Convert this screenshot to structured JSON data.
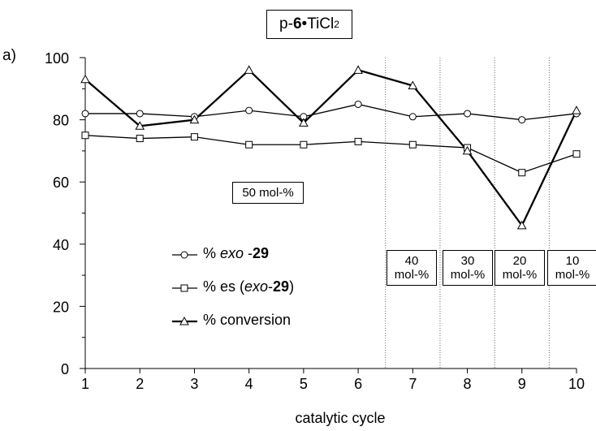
{
  "title": {
    "prefix": "p-",
    "bold": "6",
    "dot": "•",
    "rest": "TiCl",
    "sub": "2"
  },
  "panel_label": "a)",
  "chart_data": {
    "type": "line",
    "xlabel": "catalytic cycle",
    "ylabel": "",
    "x": [
      1,
      2,
      3,
      4,
      5,
      6,
      7,
      8,
      9,
      10
    ],
    "xlim": [
      1,
      10
    ],
    "ylim": [
      0,
      100
    ],
    "yticks": [
      0,
      20,
      40,
      60,
      80,
      100
    ],
    "grid": false,
    "legend_placement": "lower-left",
    "series": [
      {
        "name": "% exo -29",
        "marker": "circle",
        "values": [
          82,
          82,
          81,
          83,
          81,
          85,
          81,
          82,
          80,
          82
        ]
      },
      {
        "name": "% es (exo-29)",
        "marker": "square",
        "values": [
          75,
          74,
          74.5,
          72,
          72,
          73,
          72,
          71,
          63,
          69
        ]
      },
      {
        "name": "% conversion",
        "marker": "triangle",
        "values": [
          93,
          78,
          80,
          96,
          79,
          96,
          91,
          70,
          46,
          83
        ]
      }
    ],
    "boundaries": [
      6.5,
      7.5,
      8.5,
      9.5
    ],
    "annotations": [
      {
        "l1": "50 mol-%"
      },
      {
        "l1": "40",
        "l2": "mol-%"
      },
      {
        "l1": "30",
        "l2": "mol-%"
      },
      {
        "l1": "20",
        "l2": "mol-%"
      },
      {
        "l1": "10",
        "l2": "mol-%"
      }
    ]
  },
  "legend": [
    {
      "pre": "% ",
      "it": "exo",
      "mid": " -",
      "bold": "29",
      "post": ""
    },
    {
      "pre": "% es (",
      "it": "exo",
      "mid": "-",
      "bold": "29",
      "post": ")"
    },
    {
      "pre": "% conversion",
      "it": "",
      "mid": "",
      "bold": "",
      "post": ""
    }
  ]
}
